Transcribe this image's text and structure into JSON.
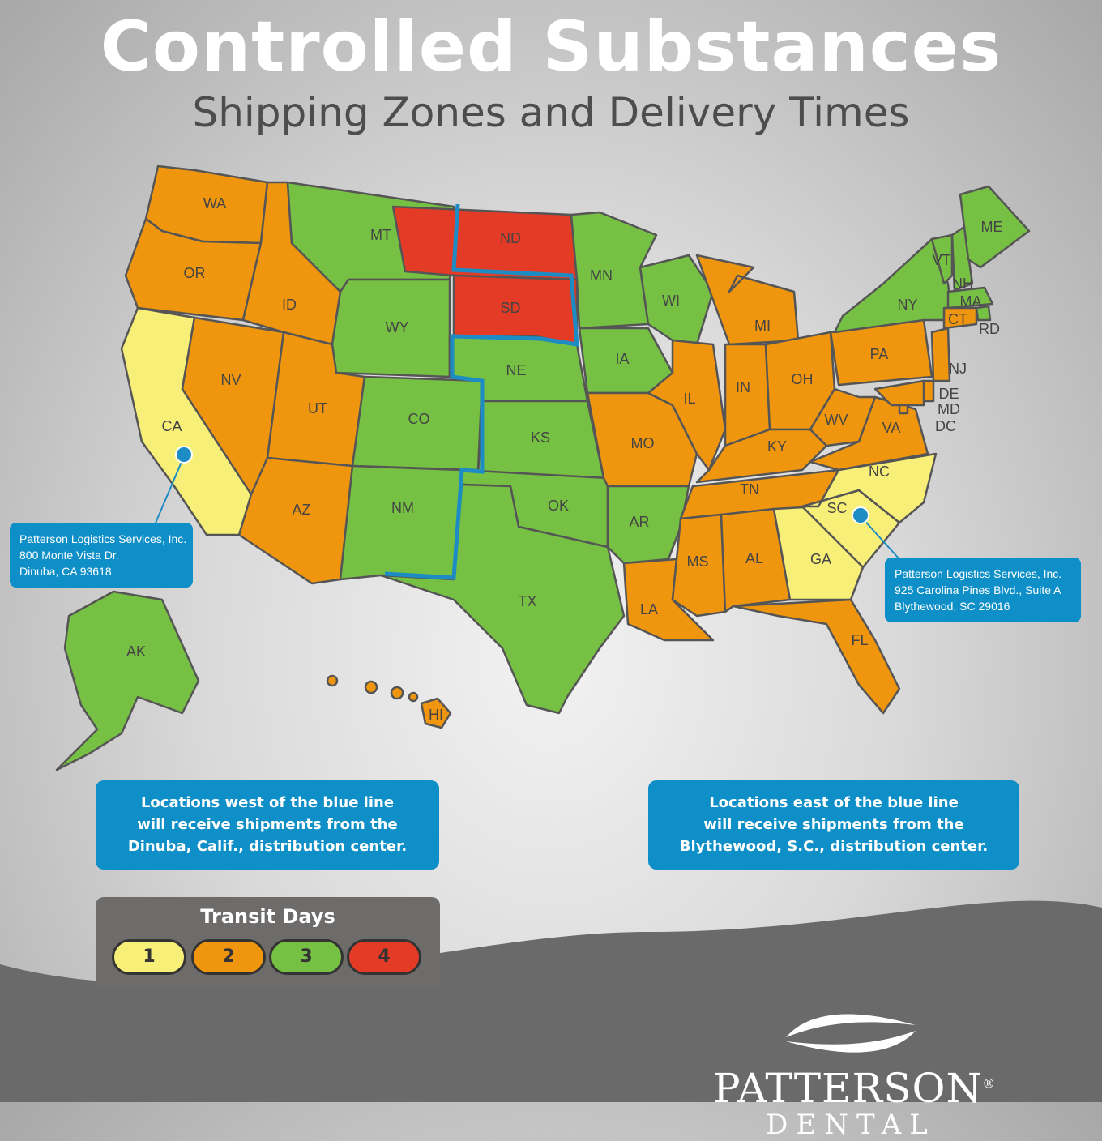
{
  "title": "Controlled Substances",
  "subtitle": "Shipping Zones and Delivery Times",
  "colors": {
    "day1": "#f7ef78",
    "day2": "#f0960e",
    "day3": "#76c043",
    "day4": "#e33b26",
    "blue_line": "#1e8cc4",
    "box": "#0e8fc7"
  },
  "states": [
    {
      "abbr": "WA",
      "days": 2
    },
    {
      "abbr": "OR",
      "days": 2
    },
    {
      "abbr": "CA",
      "days": 1
    },
    {
      "abbr": "NV",
      "days": 2
    },
    {
      "abbr": "ID",
      "days": 2
    },
    {
      "abbr": "MT",
      "days": 3
    },
    {
      "abbr": "WY",
      "days": 3
    },
    {
      "abbr": "UT",
      "days": 2
    },
    {
      "abbr": "AZ",
      "days": 2
    },
    {
      "abbr": "CO",
      "days": 3
    },
    {
      "abbr": "NM",
      "days": 3
    },
    {
      "abbr": "ND",
      "days": 4
    },
    {
      "abbr": "SD",
      "days": 4
    },
    {
      "abbr": "NE",
      "days": 3
    },
    {
      "abbr": "KS",
      "days": 3
    },
    {
      "abbr": "OK",
      "days": 3
    },
    {
      "abbr": "TX",
      "days": 3
    },
    {
      "abbr": "MN",
      "days": 3
    },
    {
      "abbr": "IA",
      "days": 3
    },
    {
      "abbr": "MO",
      "days": 2
    },
    {
      "abbr": "AR",
      "days": 3
    },
    {
      "abbr": "LA",
      "days": 2
    },
    {
      "abbr": "WI",
      "days": 3
    },
    {
      "abbr": "IL",
      "days": 2
    },
    {
      "abbr": "MI",
      "days": 2
    },
    {
      "abbr": "IN",
      "days": 2
    },
    {
      "abbr": "OH",
      "days": 2
    },
    {
      "abbr": "KY",
      "days": 2
    },
    {
      "abbr": "TN",
      "days": 2
    },
    {
      "abbr": "MS",
      "days": 2
    },
    {
      "abbr": "AL",
      "days": 2
    },
    {
      "abbr": "GA",
      "days": 1
    },
    {
      "abbr": "FL",
      "days": 2
    },
    {
      "abbr": "SC",
      "days": 1
    },
    {
      "abbr": "NC",
      "days": 1
    },
    {
      "abbr": "VA",
      "days": 2
    },
    {
      "abbr": "WV",
      "days": 2
    },
    {
      "abbr": "PA",
      "days": 2
    },
    {
      "abbr": "NY",
      "days": 3
    },
    {
      "abbr": "VT",
      "days": 3
    },
    {
      "abbr": "NH",
      "days": 3
    },
    {
      "abbr": "ME",
      "days": 3
    },
    {
      "abbr": "MA",
      "days": 3
    },
    {
      "abbr": "RD",
      "days": 3
    },
    {
      "abbr": "CT",
      "days": 2
    },
    {
      "abbr": "NJ",
      "days": 2
    },
    {
      "abbr": "DE",
      "days": 2
    },
    {
      "abbr": "MD",
      "days": 2
    },
    {
      "abbr": "DC",
      "days": 2
    },
    {
      "abbr": "AK",
      "days": 3
    },
    {
      "abbr": "HI",
      "days": 2
    }
  ],
  "west_center": {
    "line1": "Patterson Logistics Services, Inc.",
    "line2": "800 Monte Vista Dr.",
    "line3": "Dinuba, CA 93618"
  },
  "east_center": {
    "line1": "Patterson Logistics Services, Inc.",
    "line2": "925 Carolina Pines Blvd., Suite A",
    "line3": "Blythewood, SC 29016"
  },
  "west_note": {
    "line1": "Locations west of the blue line",
    "line2": "will receive shipments from the",
    "line3": "Dinuba, Calif., distribution center."
  },
  "east_note": {
    "line1": "Locations east of the blue line",
    "line2": "will receive shipments from the",
    "line3": "Blythewood, S.C., distribution center."
  },
  "legend": {
    "title": "Transit Days",
    "items": [
      {
        "label": "1",
        "color": "#f7ef78"
      },
      {
        "label": "2",
        "color": "#f0960e"
      },
      {
        "label": "3",
        "color": "#76c043"
      },
      {
        "label": "4",
        "color": "#e33b26"
      }
    ]
  },
  "brand": {
    "name": "PATTERSON",
    "reg": "®",
    "sub": "DENTAL"
  }
}
